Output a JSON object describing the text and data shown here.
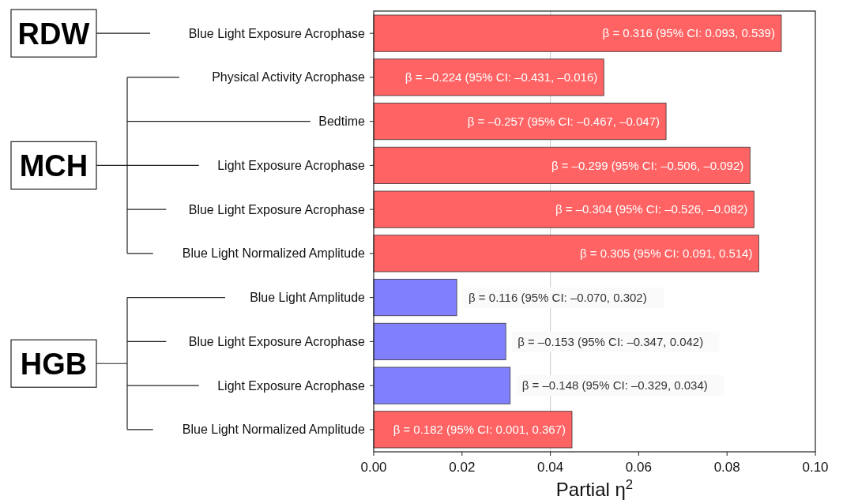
{
  "chart_data": {
    "type": "bar",
    "orientation": "horizontal",
    "xlabel": "Partial η$^{2}$",
    "categories": [
      "Blue Light Exposure Acrophase",
      "Physical Activity Acrophase",
      "Bedtime",
      "Light Exposure Acrophase",
      "Blue Light Exposure Acrophase",
      "Blue Light Normalized Amplitude",
      "Blue Light Amplitude",
      "Blue Light Exposure Acrophase",
      "Light Exposure Acrophase",
      "Blue Light Normalized Amplitude"
    ],
    "values": [
      0.0923,
      0.0521,
      0.0662,
      0.0852,
      0.0861,
      0.0872,
      0.0188,
      0.0299,
      0.0309,
      0.0449
    ],
    "colors": [
      "#ff6363",
      "#ff6363",
      "#ff6363",
      "#ff6363",
      "#ff6363",
      "#ff6363",
      "#8080ff",
      "#8080ff",
      "#8080ff",
      "#ff6363"
    ],
    "xlim": [
      0,
      0.1
    ],
    "xticks": [
      {
        "value": 0,
        "label": "0.00"
      },
      {
        "value": 0.02,
        "label": "0.02"
      },
      {
        "value": 0.04,
        "label": "0.04"
      },
      {
        "value": 0.06,
        "label": "0.06"
      },
      {
        "value": 0.08,
        "label": "0.08"
      },
      {
        "value": 0.1,
        "label": "0.10"
      }
    ],
    "ref_lines": [
      {
        "axis": "x",
        "value": 0.04,
        "color": "#d0d0d0"
      }
    ],
    "annotations": [
      "RDW",
      "MCH",
      "HGB",
      "β = 0.316 (95% CI: 0.093, 0.539)",
      "β = –0.224 (95% CI: –0.431, –0.016)",
      "β = –0.257 (95% CI: –0.467, –0.047)",
      "β = –0.299 (95% CI: –0.506, –0.092)",
      "β = –0.304 (95% CI: –0.526, –0.082)",
      "β = 0.305 (95% CI: 0.091, 0.514)",
      "β = 0.116 (95% CI: –0.070, 0.302)",
      "β = –0.153 (95% CI: –0.347, 0.042)",
      "β = –0.148 (95% CI: –0.329, 0.034)",
      "β = 0.182 (95% CI: 0.001, 0.367)"
    ]
  }
}
